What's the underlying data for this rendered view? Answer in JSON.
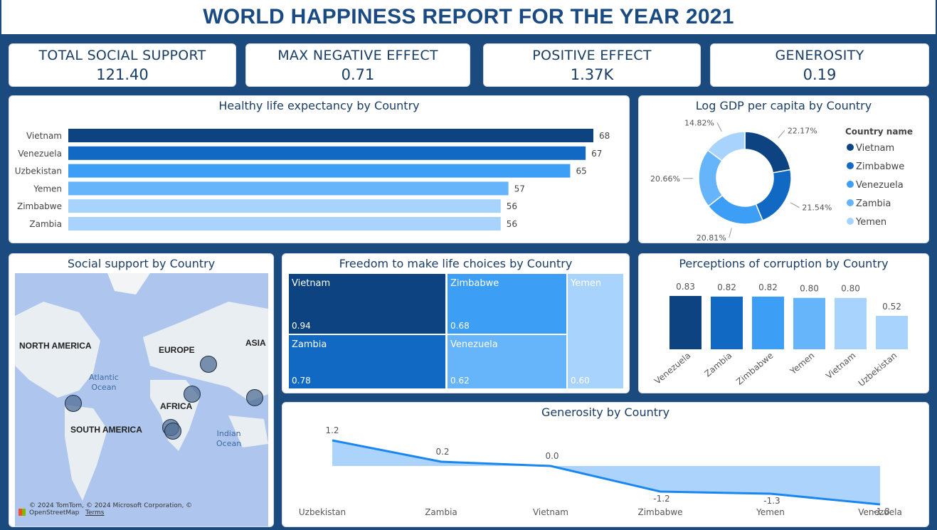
{
  "page_title": "WORLD HAPPINESS REPORT FOR THE YEAR 2021",
  "kpis": [
    {
      "label": "TOTAL SOCIAL SUPPORT",
      "value": "121.40"
    },
    {
      "label": "MAX NEGATIVE EFFECT",
      "value": "0.71"
    },
    {
      "label": "POSITIVE EFFECT",
      "value": "1.37K"
    },
    {
      "label": "GENEROSITY",
      "value": "0.19"
    }
  ],
  "colors": {
    "c1": "#0c4380",
    "c2": "#1269c4",
    "c3": "#3c9ef5",
    "c4": "#66b5fa",
    "c5": "#a8d3fc",
    "line": "#1a87f0",
    "area": "#a7d1fb"
  },
  "map": {
    "title": "Social support by Country",
    "labels": {
      "na": "NORTH AMERICA",
      "eu": "EUROPE",
      "as": "ASIA",
      "af": "AFRICA",
      "sa": "SOUTH AMERICA"
    },
    "oceans": {
      "atl_1": "Atlantic",
      "atl_2": "Ocean",
      "ind_1": "Indian",
      "ind_2": "Ocean"
    },
    "copyright": "© 2024 TomTom, © 2024 Microsoft Corporation, © OpenStreetMap",
    "terms": "Terms"
  },
  "chart_data": [
    {
      "type": "bar",
      "orientation": "horizontal",
      "title": "Healthy life expectancy by Country",
      "categories": [
        "Vietnam",
        "Venezuela",
        "Uzbekistan",
        "Yemen",
        "Zimbabwe",
        "Zambia"
      ],
      "values": [
        68,
        67,
        65,
        57,
        56,
        56
      ],
      "data_labels": [
        "68",
        "67",
        "65",
        "57",
        "56",
        "56"
      ],
      "colors": [
        "#0c4380",
        "#1269c4",
        "#3c9ef5",
        "#66b5fa",
        "#a8d3fc",
        "#a8d3fc"
      ]
    },
    {
      "type": "pie",
      "donut": true,
      "title": "Log GDP per capita by Country",
      "legend_title": "Country name",
      "legend_position": "right",
      "categories": [
        "Vietnam",
        "Zimbabwe",
        "Venezuela",
        "Zambia",
        "Yemen"
      ],
      "values": [
        22.17,
        21.54,
        20.81,
        20.66,
        14.82
      ],
      "data_labels": [
        "22.17%",
        "21.54%",
        "20.81%",
        "20.66%",
        "14.82%"
      ],
      "colors": [
        "#0c4380",
        "#1269c4",
        "#3c9ef5",
        "#66b5fa",
        "#a8d3fc"
      ]
    },
    {
      "type": "treemap",
      "title": "Freedom to make life choices by Country",
      "categories": [
        "Vietnam",
        "Zambia",
        "Zimbabwe",
        "Venezuela",
        "Yemen"
      ],
      "values": [
        0.94,
        0.78,
        0.68,
        0.62,
        0.6
      ],
      "data_labels": [
        "0.94",
        "0.78",
        "0.68",
        "0.62",
        "0.60"
      ],
      "colors": [
        "#0c4380",
        "#1269c4",
        "#3c9ef5",
        "#66b5fa",
        "#a8d3fc"
      ]
    },
    {
      "type": "bar",
      "title": "Perceptions of corruption by Country",
      "categories": [
        "Venezuela",
        "Zambia",
        "Zimbabwe",
        "Yemen",
        "Vietnam",
        "Uzbekistan"
      ],
      "values": [
        0.83,
        0.82,
        0.82,
        0.8,
        0.8,
        0.52
      ],
      "data_labels": [
        "0.83",
        "0.82",
        "0.82",
        "0.80",
        "0.80",
        "0.52"
      ],
      "colors": [
        "#0c4380",
        "#1269c4",
        "#3c9ef5",
        "#66b5fa",
        "#a8d3fc",
        "#a8d3fc"
      ]
    },
    {
      "type": "area",
      "title": "Generosity by Country",
      "categories": [
        "Uzbekistan",
        "Zambia",
        "Vietnam",
        "Zimbabwe",
        "Yemen",
        "Venezuela"
      ],
      "values": [
        1.2,
        0.2,
        0.0,
        -1.2,
        -1.3,
        -1.8
      ],
      "data_labels": [
        "1.2",
        "0.2",
        "0.0",
        "-1.2",
        "-1.3",
        "-1.8"
      ]
    }
  ]
}
